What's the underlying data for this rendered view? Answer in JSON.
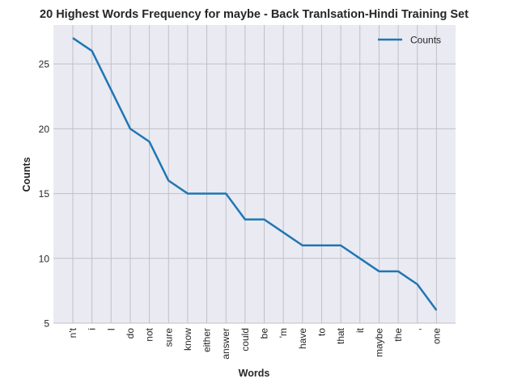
{
  "chart_data": {
    "type": "line",
    "title": "20 Highest Words Frequency for maybe - Back Tranlsation-Hindi Training Set",
    "xlabel": "Words",
    "ylabel": "Counts",
    "categories": [
      "n't",
      "i",
      "I",
      "do",
      "not",
      "sure",
      "know",
      "either",
      "answer",
      "could",
      "be",
      "'m",
      "have",
      "to",
      "that",
      "it",
      "maybe",
      "the",
      ",",
      "one"
    ],
    "series": [
      {
        "name": "Counts",
        "values": [
          27,
          26,
          23,
          20,
          19,
          16,
          15,
          15,
          15,
          13,
          13,
          12,
          11,
          11,
          11,
          10,
          9,
          9,
          8,
          6
        ]
      }
    ],
    "ylim": [
      5,
      28
    ],
    "yticks": [
      5,
      10,
      15,
      20,
      25
    ],
    "grid": true,
    "legend_position": "top-right",
    "colors": {
      "line": "#1f77b4",
      "plot_background": "#eaeaf2",
      "grid": "#c0c0c8"
    }
  }
}
